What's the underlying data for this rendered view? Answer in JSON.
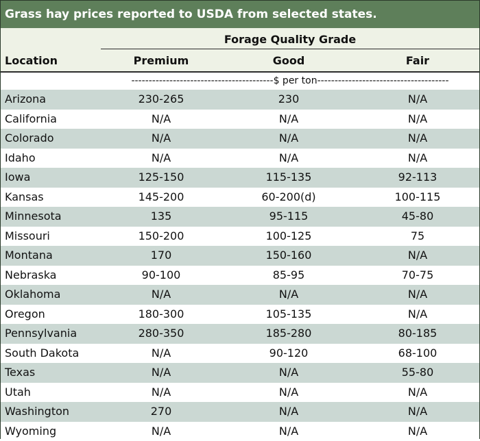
{
  "title": "Grass hay prices reported to USDA from selected states.",
  "group_header": "Forage Quality Grade",
  "columns": {
    "location": "Location",
    "premium": "Premium",
    "good": "Good",
    "fair": "Fair"
  },
  "units": "-----------------------------------------$ per ton--------------------------------------",
  "rows": [
    {
      "location": "Arizona",
      "premium": "230-265",
      "good": "230",
      "fair": "N/A"
    },
    {
      "location": "California",
      "premium": "N/A",
      "good": "N/A",
      "fair": "N/A"
    },
    {
      "location": "Colorado",
      "premium": "N/A",
      "good": "N/A",
      "fair": "N/A"
    },
    {
      "location": "Idaho",
      "premium": "N/A",
      "good": "N/A",
      "fair": "N/A"
    },
    {
      "location": "Iowa",
      "premium": "125-150",
      "good": "115-135",
      "fair": "92-113"
    },
    {
      "location": "Kansas",
      "premium": "145-200",
      "good": "60-200(d)",
      "fair": "100-115"
    },
    {
      "location": "Minnesota",
      "premium": "135",
      "good": "95-115",
      "fair": "45-80"
    },
    {
      "location": "Missouri",
      "premium": "150-200",
      "good": "100-125",
      "fair": "75"
    },
    {
      "location": "Montana",
      "premium": "170",
      "good": "150-160",
      "fair": "N/A"
    },
    {
      "location": "Nebraska",
      "premium": "90-100",
      "good": "85-95",
      "fair": "70-75"
    },
    {
      "location": "Oklahoma",
      "premium": "N/A",
      "good": "N/A",
      "fair": "N/A"
    },
    {
      "location": "Oregon",
      "premium": "180-300",
      "good": "105-135",
      "fair": "N/A"
    },
    {
      "location": "Pennsylvania",
      "premium": "280-350",
      "good": "185-280",
      "fair": "80-185"
    },
    {
      "location": "South Dakota",
      "premium": "N/A",
      "good": "90-120",
      "fair": "68-100"
    },
    {
      "location": "Texas",
      "premium": "N/A",
      "good": "N/A",
      "fair": "55-80"
    },
    {
      "location": "Utah",
      "premium": "N/A",
      "good": "N/A",
      "fair": "N/A"
    },
    {
      "location": "Washington",
      "premium": "270",
      "good": "N/A",
      "fair": "N/A"
    },
    {
      "location": "Wyoming",
      "premium": "N/A",
      "good": "N/A",
      "fair": "N/A"
    }
  ]
}
